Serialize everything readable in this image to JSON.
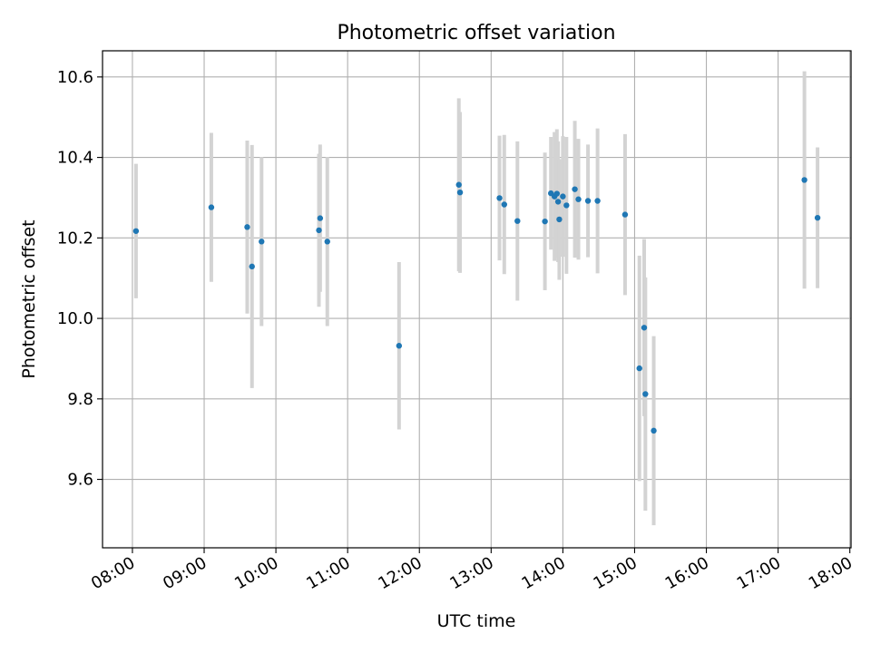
{
  "chart_data": {
    "type": "scatter",
    "title": "Photometric offset variation",
    "xlabel": "UTC time",
    "ylabel": "Photometric offset",
    "xlim": [
      "07:35",
      "18:01"
    ],
    "ylim": [
      9.43,
      10.665
    ],
    "x_ticks": [
      "08:00",
      "09:00",
      "10:00",
      "11:00",
      "12:00",
      "13:00",
      "14:00",
      "15:00",
      "16:00",
      "17:00",
      "18:00"
    ],
    "y_ticks": [
      "9.6",
      "9.8",
      "10.0",
      "10.2",
      "10.4",
      "10.6"
    ],
    "y_tick_values": [
      9.6,
      9.8,
      10.0,
      10.2,
      10.4,
      10.6
    ],
    "grid": true,
    "point_color": "#1f77b4",
    "errorbar_color": "#d3d3d3",
    "points": [
      {
        "x": "08:03",
        "y": 10.217,
        "err": 0.167
      },
      {
        "x": "09:06",
        "y": 10.276,
        "err": 0.185
      },
      {
        "x": "09:36",
        "y": 10.227,
        "err": 0.215
      },
      {
        "x": "09:40",
        "y": 10.129,
        "err": 0.302
      },
      {
        "x": "09:48",
        "y": 10.191,
        "err": 0.21
      },
      {
        "x": "10:36",
        "y": 10.219,
        "err": 0.19
      },
      {
        "x": "10:37",
        "y": 10.249,
        "err": 0.183
      },
      {
        "x": "10:43",
        "y": 10.191,
        "err": 0.21
      },
      {
        "x": "11:43",
        "y": 9.932,
        "err": 0.208
      },
      {
        "x": "12:33",
        "y": 10.332,
        "err": 0.215
      },
      {
        "x": "12:34",
        "y": 10.313,
        "err": 0.2
      },
      {
        "x": "13:07",
        "y": 10.299,
        "err": 0.155
      },
      {
        "x": "13:11",
        "y": 10.283,
        "err": 0.173
      },
      {
        "x": "13:22",
        "y": 10.242,
        "err": 0.198
      },
      {
        "x": "13:45",
        "y": 10.241,
        "err": 0.171
      },
      {
        "x": "13:50",
        "y": 10.311,
        "err": 0.14
      },
      {
        "x": "13:53",
        "y": 10.303,
        "err": 0.16
      },
      {
        "x": "13:55",
        "y": 10.31,
        "err": 0.16
      },
      {
        "x": "13:56",
        "y": 10.29,
        "err": 0.15
      },
      {
        "x": "13:57",
        "y": 10.246,
        "err": 0.15
      },
      {
        "x": "14:00",
        "y": 10.303,
        "err": 0.15
      },
      {
        "x": "14:03",
        "y": 10.281,
        "err": 0.17
      },
      {
        "x": "14:10",
        "y": 10.321,
        "err": 0.17
      },
      {
        "x": "14:13",
        "y": 10.296,
        "err": 0.15
      },
      {
        "x": "14:21",
        "y": 10.292,
        "err": 0.14
      },
      {
        "x": "14:29",
        "y": 10.292,
        "err": 0.18
      },
      {
        "x": "14:52",
        "y": 10.258,
        "err": 0.2
      },
      {
        "x": "15:04",
        "y": 9.876,
        "err": 0.28
      },
      {
        "x": "15:08",
        "y": 9.977,
        "err": 0.22
      },
      {
        "x": "15:09",
        "y": 9.812,
        "err": 0.29
      },
      {
        "x": "15:16",
        "y": 9.721,
        "err": 0.235
      },
      {
        "x": "17:22",
        "y": 10.344,
        "err": 0.27
      },
      {
        "x": "17:33",
        "y": 10.25,
        "err": 0.175
      }
    ]
  }
}
